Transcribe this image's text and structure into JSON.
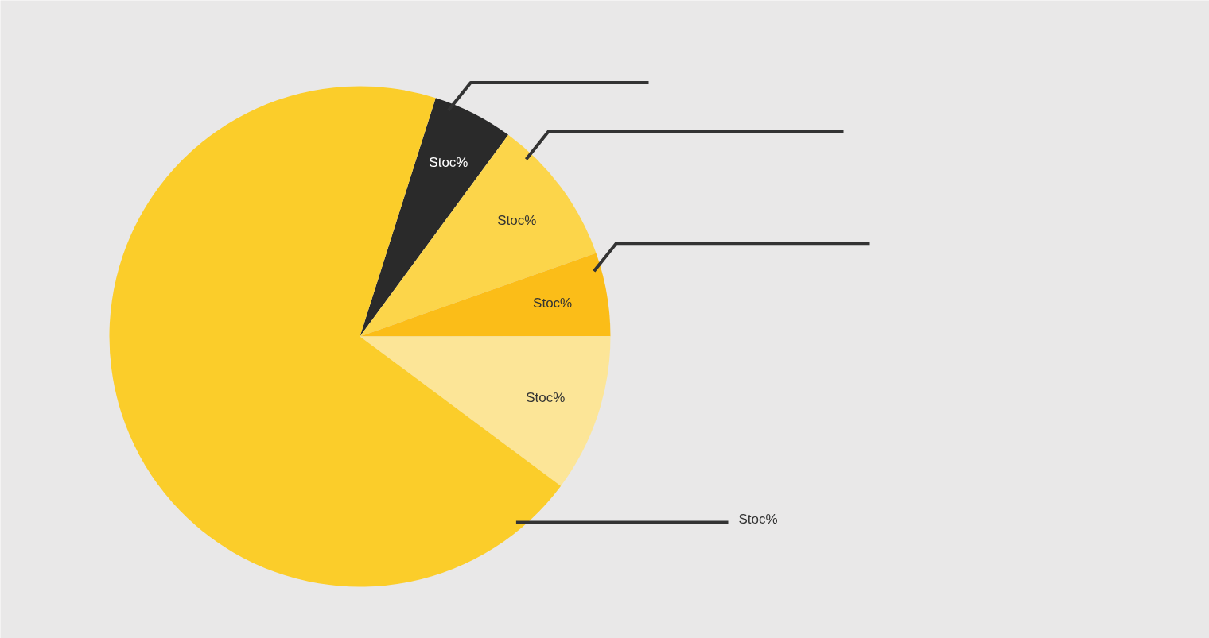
{
  "chart_data": {
    "type": "pie",
    "categories": [
      "Stoc%",
      "Stoc%",
      "Stoc%",
      "Stoc%",
      "Stoc%"
    ],
    "values": [
      5.2,
      9.5,
      5.4,
      10.2,
      69.7
    ],
    "colors": [
      "#2a2a2a",
      "#fcd54a",
      "#fbbd18",
      "#fce597",
      "#fbcd2a"
    ]
  }
}
